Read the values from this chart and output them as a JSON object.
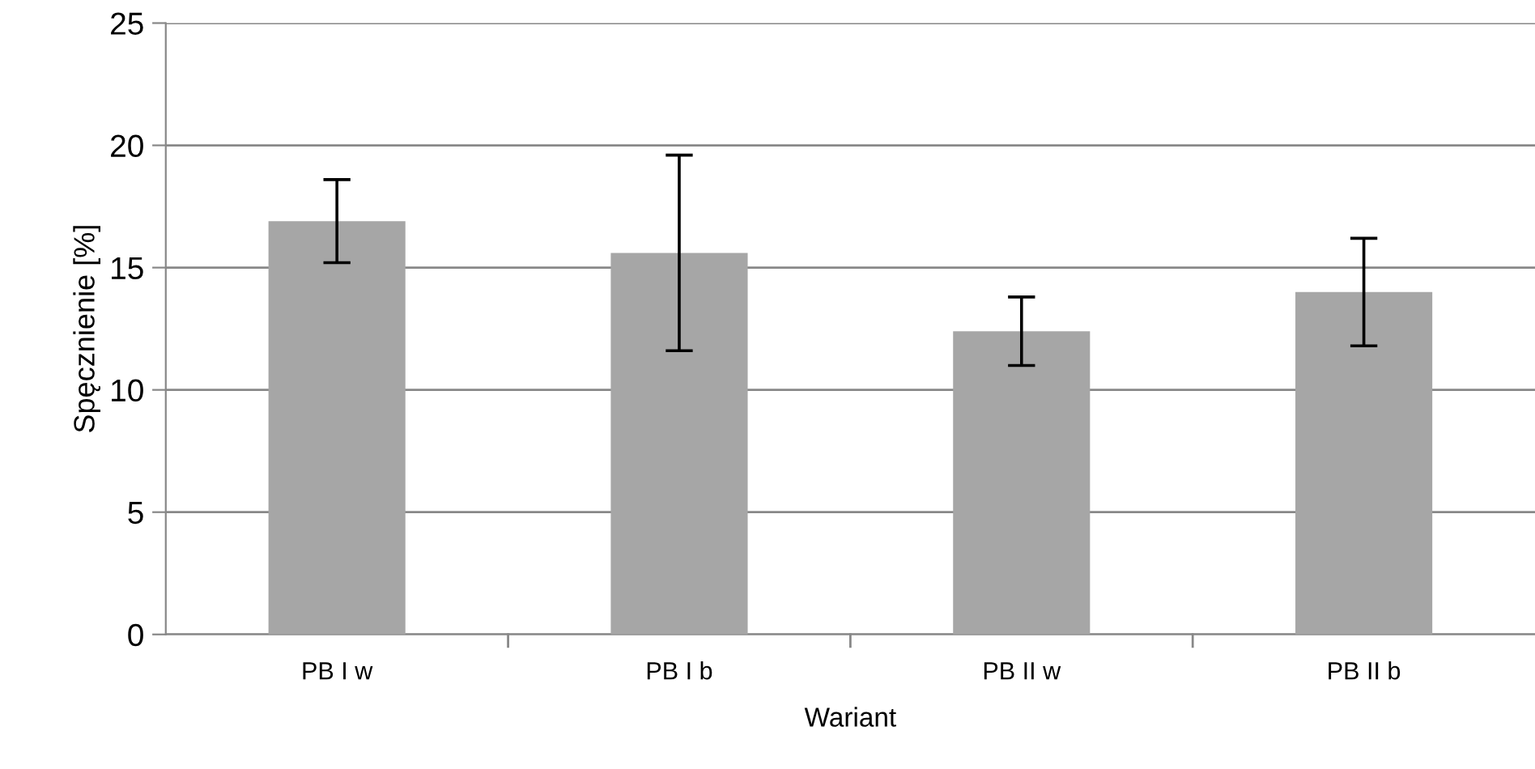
{
  "chart_data": {
    "type": "bar",
    "xlabel": "Wariant",
    "ylabel": "Spęcznienie [%]",
    "categories": [
      "PB I w",
      "PB I b",
      "PB II w",
      "PB II b"
    ],
    "values": [
      16.9,
      15.6,
      12.4,
      14.0
    ],
    "errors": [
      1.7,
      4.0,
      1.4,
      2.2
    ],
    "color": "#a6a6a6",
    "ylim": [
      0,
      25
    ],
    "yticks": [
      0,
      5,
      10,
      15,
      20,
      25
    ],
    "grid": "y",
    "legend": false
  }
}
